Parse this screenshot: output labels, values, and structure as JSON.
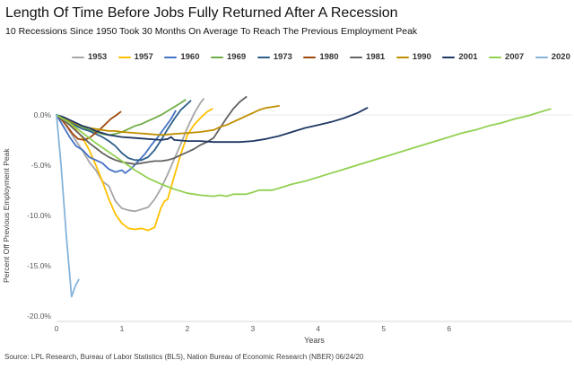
{
  "header": {
    "title": "Length Of Time Before Jobs Fully Returned After A Recession",
    "subtitle": "10 Recessions Since 1950 Took 30 Months On Average To Reach The Previous Employment Peak"
  },
  "footer": {
    "source": "Source: LPL Research, Bureau of Labor Statistics (BLS), Nation Bureau of Economic Research (NBER) 06/24/20"
  },
  "chart_data": {
    "type": "line",
    "title": "Length Of Time Before Jobs Fully Returned After A Recession",
    "subtitle": "10 Recessions Since 1950 Took 30 Months On Average To Reach The Previous Employment Peak",
    "xlabel": "Years",
    "ylabel": "Percent Off Previous Employment Peak",
    "legend_position": "top",
    "grid": "zero-line-only",
    "xlim": [
      0,
      7.9
    ],
    "ylim": [
      -20.5,
      2.5
    ],
    "x_ticks": [
      0,
      1,
      2,
      3,
      4,
      5,
      6
    ],
    "y_ticks": [
      {
        "value": 0,
        "label": "0.0%"
      },
      {
        "value": -5,
        "label": "-5.0%"
      },
      {
        "value": -10,
        "label": "-10.0%"
      },
      {
        "value": -15,
        "label": "-15.0%"
      },
      {
        "value": -20,
        "label": "-20.0%"
      }
    ],
    "colors": {
      "zero_gridline": "#e8e8e8",
      "axis_line": "#d9d9d9"
    },
    "series": [
      {
        "name": "1953",
        "color": "#a6a6a6",
        "points": [
          [
            0,
            0
          ],
          [
            0.1,
            -0.6
          ],
          [
            0.2,
            -1.6
          ],
          [
            0.3,
            -2.6
          ],
          [
            0.4,
            -3.6
          ],
          [
            0.5,
            -4.7
          ],
          [
            0.6,
            -5.5
          ],
          [
            0.7,
            -6.6
          ],
          [
            0.8,
            -7.1
          ],
          [
            0.9,
            -8.6
          ],
          [
            1.0,
            -9.3
          ],
          [
            1.1,
            -9.5
          ],
          [
            1.2,
            -9.6
          ],
          [
            1.3,
            -9.4
          ],
          [
            1.4,
            -9.2
          ],
          [
            1.5,
            -8.4
          ],
          [
            1.6,
            -7.3
          ],
          [
            1.7,
            -5.9
          ],
          [
            1.8,
            -4.4
          ],
          [
            1.9,
            -2.9
          ],
          [
            2.0,
            -1.3
          ],
          [
            2.1,
            0.1
          ],
          [
            2.2,
            1.2
          ],
          [
            2.25,
            1.6
          ]
        ]
      },
      {
        "name": "1957",
        "color": "#ffc000",
        "points": [
          [
            0,
            0
          ],
          [
            0.1,
            -0.4
          ],
          [
            0.2,
            -0.9
          ],
          [
            0.3,
            -1.5
          ],
          [
            0.4,
            -2.3
          ],
          [
            0.5,
            -3.5
          ],
          [
            0.6,
            -5.0
          ],
          [
            0.7,
            -6.6
          ],
          [
            0.8,
            -8.4
          ],
          [
            0.9,
            -9.9
          ],
          [
            1.0,
            -10.8
          ],
          [
            1.1,
            -11.3
          ],
          [
            1.2,
            -11.4
          ],
          [
            1.3,
            -11.3
          ],
          [
            1.4,
            -11.5
          ],
          [
            1.5,
            -11.2
          ],
          [
            1.6,
            -9.2
          ],
          [
            1.65,
            -8.6
          ],
          [
            1.7,
            -8.4
          ],
          [
            1.8,
            -6.1
          ],
          [
            1.9,
            -3.9
          ],
          [
            2.0,
            -2.0
          ],
          [
            2.1,
            -1.0
          ],
          [
            2.2,
            -0.3
          ],
          [
            2.3,
            0.3
          ],
          [
            2.38,
            0.6
          ]
        ]
      },
      {
        "name": "1960",
        "color": "#4472c4",
        "points": [
          [
            0,
            0
          ],
          [
            0.1,
            -1.1
          ],
          [
            0.2,
            -2.2
          ],
          [
            0.3,
            -3.1
          ],
          [
            0.4,
            -3.5
          ],
          [
            0.5,
            -4.2
          ],
          [
            0.6,
            -4.5
          ],
          [
            0.7,
            -4.8
          ],
          [
            0.8,
            -5.4
          ],
          [
            0.9,
            -5.7
          ],
          [
            1.0,
            -5.5
          ],
          [
            1.05,
            -5.8
          ],
          [
            1.15,
            -5.3
          ],
          [
            1.25,
            -4.6
          ],
          [
            1.35,
            -3.9
          ],
          [
            1.45,
            -3.0
          ],
          [
            1.55,
            -2.2
          ],
          [
            1.65,
            -1.3
          ],
          [
            1.75,
            -0.4
          ],
          [
            1.82,
            0.4
          ]
        ]
      },
      {
        "name": "1969",
        "color": "#70ad47",
        "points": [
          [
            0,
            0
          ],
          [
            0.1,
            -0.3
          ],
          [
            0.2,
            -0.6
          ],
          [
            0.3,
            -1.0
          ],
          [
            0.4,
            -1.2
          ],
          [
            0.5,
            -1.5
          ],
          [
            0.6,
            -1.7
          ],
          [
            0.7,
            -1.9
          ],
          [
            0.8,
            -2.0
          ],
          [
            0.9,
            -1.9
          ],
          [
            1.0,
            -1.7
          ],
          [
            1.1,
            -1.4
          ],
          [
            1.2,
            -1.1
          ],
          [
            1.3,
            -0.9
          ],
          [
            1.4,
            -0.6
          ],
          [
            1.5,
            -0.3
          ],
          [
            1.6,
            0.0
          ],
          [
            1.7,
            0.4
          ],
          [
            1.8,
            0.8
          ],
          [
            1.9,
            1.2
          ],
          [
            1.97,
            1.5
          ]
        ]
      },
      {
        "name": "1973",
        "color": "#2d5f8a",
        "points": [
          [
            0,
            0
          ],
          [
            0.1,
            -0.4
          ],
          [
            0.2,
            -0.7
          ],
          [
            0.3,
            -1.1
          ],
          [
            0.4,
            -1.4
          ],
          [
            0.5,
            -1.6
          ],
          [
            0.6,
            -1.9
          ],
          [
            0.7,
            -2.2
          ],
          [
            0.8,
            -2.6
          ],
          [
            0.9,
            -3.1
          ],
          [
            1.0,
            -3.8
          ],
          [
            1.1,
            -4.3
          ],
          [
            1.2,
            -4.5
          ],
          [
            1.3,
            -4.5
          ],
          [
            1.4,
            -4.2
          ],
          [
            1.5,
            -3.5
          ],
          [
            1.6,
            -2.5
          ],
          [
            1.7,
            -1.4
          ],
          [
            1.8,
            -0.4
          ],
          [
            1.9,
            0.5
          ],
          [
            2.0,
            1.1
          ],
          [
            2.05,
            1.4
          ]
        ]
      },
      {
        "name": "1980",
        "color": "#9e480e",
        "points": [
          [
            0,
            0
          ],
          [
            0.08,
            -0.5
          ],
          [
            0.17,
            -1.2
          ],
          [
            0.25,
            -1.9
          ],
          [
            0.33,
            -2.4
          ],
          [
            0.42,
            -2.5
          ],
          [
            0.5,
            -2.3
          ],
          [
            0.58,
            -1.9
          ],
          [
            0.67,
            -1.4
          ],
          [
            0.75,
            -0.9
          ],
          [
            0.83,
            -0.4
          ],
          [
            0.92,
            0.0
          ],
          [
            0.98,
            0.3
          ]
        ]
      },
      {
        "name": "1981",
        "color": "#636363",
        "points": [
          [
            0,
            0
          ],
          [
            0.1,
            -0.5
          ],
          [
            0.2,
            -1.0
          ],
          [
            0.3,
            -1.6
          ],
          [
            0.4,
            -2.2
          ],
          [
            0.5,
            -2.8
          ],
          [
            0.6,
            -3.3
          ],
          [
            0.7,
            -3.8
          ],
          [
            0.8,
            -4.2
          ],
          [
            0.9,
            -4.5
          ],
          [
            1.0,
            -4.7
          ],
          [
            1.1,
            -4.8
          ],
          [
            1.2,
            -4.9
          ],
          [
            1.3,
            -4.8
          ],
          [
            1.4,
            -4.7
          ],
          [
            1.5,
            -4.6
          ],
          [
            1.6,
            -4.6
          ],
          [
            1.7,
            -4.5
          ],
          [
            1.8,
            -4.3
          ],
          [
            1.9,
            -4.0
          ],
          [
            2.0,
            -3.7
          ],
          [
            2.1,
            -3.4
          ],
          [
            2.2,
            -3.0
          ],
          [
            2.3,
            -2.7
          ],
          [
            2.4,
            -2.3
          ],
          [
            2.5,
            -1.3
          ],
          [
            2.6,
            -0.3
          ],
          [
            2.7,
            0.6
          ],
          [
            2.8,
            1.3
          ],
          [
            2.9,
            1.8
          ]
        ]
      },
      {
        "name": "1990",
        "color": "#bf8f00",
        "points": [
          [
            0,
            0
          ],
          [
            0.1,
            -0.3
          ],
          [
            0.2,
            -0.6
          ],
          [
            0.3,
            -0.9
          ],
          [
            0.4,
            -1.1
          ],
          [
            0.5,
            -1.3
          ],
          [
            0.6,
            -1.4
          ],
          [
            0.7,
            -1.5
          ],
          [
            0.8,
            -1.6
          ],
          [
            0.9,
            -1.6
          ],
          [
            1.0,
            -1.7
          ],
          [
            1.2,
            -1.8
          ],
          [
            1.4,
            -1.9
          ],
          [
            1.6,
            -2.0
          ],
          [
            1.8,
            -1.9
          ],
          [
            2.0,
            -1.8
          ],
          [
            2.2,
            -1.7
          ],
          [
            2.3,
            -1.6
          ],
          [
            2.4,
            -1.5
          ],
          [
            2.5,
            -1.2
          ],
          [
            2.6,
            -1.0
          ],
          [
            2.7,
            -0.7
          ],
          [
            2.8,
            -0.4
          ],
          [
            2.9,
            -0.1
          ],
          [
            3.0,
            0.2
          ],
          [
            3.1,
            0.5
          ],
          [
            3.2,
            0.7
          ],
          [
            3.3,
            0.8
          ],
          [
            3.4,
            0.9
          ]
        ]
      },
      {
        "name": "2001",
        "color": "#1f3864",
        "points": [
          [
            0,
            0
          ],
          [
            0.1,
            -0.2
          ],
          [
            0.2,
            -0.5
          ],
          [
            0.3,
            -0.8
          ],
          [
            0.4,
            -1.1
          ],
          [
            0.5,
            -1.3
          ],
          [
            0.6,
            -1.6
          ],
          [
            0.7,
            -1.8
          ],
          [
            0.8,
            -2.0
          ],
          [
            0.9,
            -2.1
          ],
          [
            1.0,
            -2.2
          ],
          [
            1.2,
            -2.3
          ],
          [
            1.4,
            -2.4
          ],
          [
            1.6,
            -2.5
          ],
          [
            1.7,
            -2.4
          ],
          [
            1.75,
            -2.2
          ],
          [
            1.8,
            -2.5
          ],
          [
            2.0,
            -2.6
          ],
          [
            2.2,
            -2.6
          ],
          [
            2.4,
            -2.7
          ],
          [
            2.6,
            -2.7
          ],
          [
            2.8,
            -2.7
          ],
          [
            3.0,
            -2.6
          ],
          [
            3.2,
            -2.4
          ],
          [
            3.4,
            -2.1
          ],
          [
            3.6,
            -1.7
          ],
          [
            3.8,
            -1.3
          ],
          [
            4.0,
            -1.0
          ],
          [
            4.2,
            -0.7
          ],
          [
            4.4,
            -0.3
          ],
          [
            4.6,
            0.2
          ],
          [
            4.75,
            0.7
          ]
        ]
      },
      {
        "name": "2007",
        "color": "#92d050",
        "points": [
          [
            0,
            0
          ],
          [
            0.2,
            -0.8
          ],
          [
            0.4,
            -1.8
          ],
          [
            0.6,
            -2.8
          ],
          [
            0.8,
            -3.7
          ],
          [
            1.0,
            -4.6
          ],
          [
            1.2,
            -5.5
          ],
          [
            1.4,
            -6.3
          ],
          [
            1.6,
            -6.9
          ],
          [
            1.8,
            -7.4
          ],
          [
            2.0,
            -7.8
          ],
          [
            2.2,
            -8.0
          ],
          [
            2.4,
            -8.1
          ],
          [
            2.5,
            -8.0
          ],
          [
            2.6,
            -8.1
          ],
          [
            2.7,
            -7.9
          ],
          [
            2.9,
            -7.9
          ],
          [
            3.0,
            -7.7
          ],
          [
            3.1,
            -7.5
          ],
          [
            3.3,
            -7.5
          ],
          [
            3.4,
            -7.3
          ],
          [
            3.6,
            -6.9
          ],
          [
            3.8,
            -6.6
          ],
          [
            4.0,
            -6.2
          ],
          [
            4.2,
            -5.8
          ],
          [
            4.4,
            -5.4
          ],
          [
            4.6,
            -5.0
          ],
          [
            4.8,
            -4.6
          ],
          [
            5.0,
            -4.2
          ],
          [
            5.2,
            -3.8
          ],
          [
            5.4,
            -3.4
          ],
          [
            5.6,
            -3.0
          ],
          [
            5.8,
            -2.6
          ],
          [
            6.0,
            -2.2
          ],
          [
            6.2,
            -1.8
          ],
          [
            6.4,
            -1.5
          ],
          [
            6.6,
            -1.1
          ],
          [
            6.8,
            -0.8
          ],
          [
            7.0,
            -0.4
          ],
          [
            7.2,
            -0.1
          ],
          [
            7.4,
            0.3
          ],
          [
            7.55,
            0.6
          ]
        ]
      },
      {
        "name": "2020",
        "color": "#85b3da",
        "points": [
          [
            0,
            0
          ],
          [
            0.07,
            -5.0
          ],
          [
            0.15,
            -12.0
          ],
          [
            0.23,
            -18.1
          ],
          [
            0.29,
            -17.0
          ],
          [
            0.34,
            -16.4
          ]
        ]
      }
    ]
  }
}
